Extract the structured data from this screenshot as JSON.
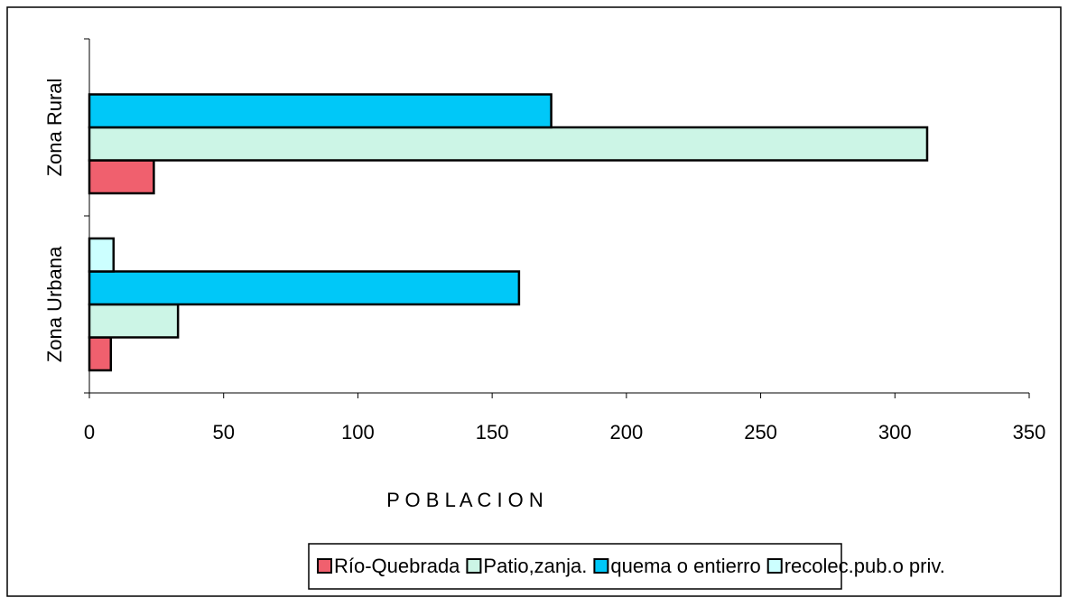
{
  "chart_data": {
    "type": "hbar",
    "categories": [
      "Zona Urbana",
      "Zona Rural"
    ],
    "series": [
      {
        "name": "Río-Quebrada",
        "color": "#f0606e",
        "values": [
          8,
          24
        ]
      },
      {
        "name": "Patio,zanja.",
        "color": "#ccf5e6",
        "values": [
          33,
          312
        ]
      },
      {
        "name": "quema o entierro",
        "color": "#00c8f8",
        "values": [
          160,
          172
        ]
      },
      {
        "name": "recolec.pub.o priv.",
        "color": "#ccffff",
        "values": [
          9,
          null
        ]
      }
    ],
    "xlabel": "P O B L A C I O N",
    "xlim": [
      0,
      350
    ],
    "xticks": [
      0,
      50,
      100,
      150,
      200,
      250,
      300,
      350
    ],
    "legend": "bottom"
  }
}
